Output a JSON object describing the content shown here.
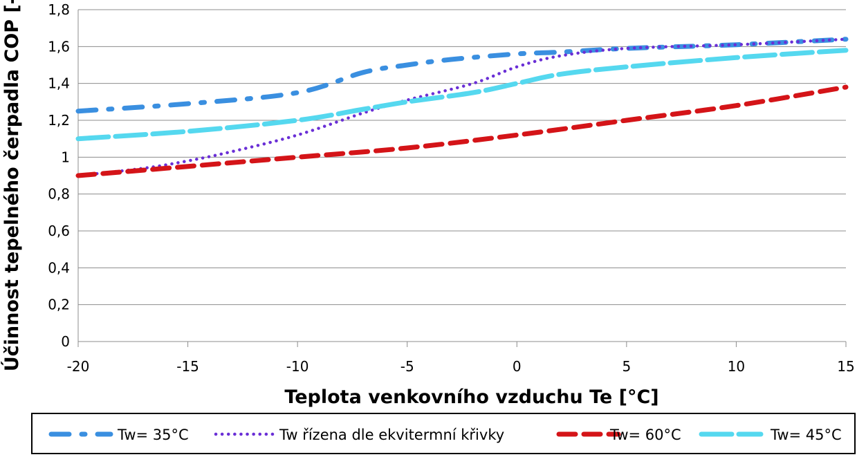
{
  "chart_data": {
    "type": "line",
    "xlabel": "Teplota venkovního vzduchu Te [°C]",
    "ylabel": "Účinnost tepelného čerpadla COP [-]",
    "xlim": [
      -20,
      15
    ],
    "ylim": [
      0,
      1.8
    ],
    "x_ticks": [
      "-20",
      "-15",
      "-10",
      "-5",
      "0",
      "5",
      "10",
      "15"
    ],
    "y_ticks": [
      "0",
      "0,2",
      "0,4",
      "0,6",
      "0,8",
      "1",
      "1,2",
      "1,4",
      "1,6",
      "1,8"
    ],
    "grid": "horizontal",
    "legend_position": "bottom",
    "series": [
      {
        "name": "Tw= 35°C",
        "color": "#3a8fe0",
        "style": "dash-dot",
        "x": [
          -20,
          -15,
          -10,
          -7,
          -5,
          -3,
          0,
          2,
          5,
          10,
          15
        ],
        "y": [
          1.25,
          1.29,
          1.35,
          1.46,
          1.5,
          1.53,
          1.56,
          1.57,
          1.59,
          1.61,
          1.64
        ]
      },
      {
        "name": "Tw řízena dle ekvitermní křivky",
        "color": "#6a2fd6",
        "style": "dotted",
        "x": [
          -20,
          -17,
          -15,
          -13,
          -10,
          -7,
          -5,
          -2,
          0,
          2,
          5,
          10,
          15
        ],
        "y": [
          0.9,
          0.94,
          0.98,
          1.03,
          1.12,
          1.24,
          1.31,
          1.4,
          1.49,
          1.55,
          1.59,
          1.61,
          1.64
        ]
      },
      {
        "name": "Tw= 60°C",
        "color": "#d41418",
        "style": "dashed",
        "x": [
          -20,
          -15,
          -10,
          -5,
          0,
          5,
          10,
          15
        ],
        "y": [
          0.9,
          0.95,
          1.0,
          1.05,
          1.12,
          1.2,
          1.28,
          1.38
        ]
      },
      {
        "name": "Tw= 45°C",
        "color": "#55d8ef",
        "style": "long-dash",
        "x": [
          -20,
          -15,
          -10,
          -7,
          -5,
          -2,
          0,
          2,
          5,
          10,
          15
        ],
        "y": [
          1.1,
          1.14,
          1.2,
          1.26,
          1.3,
          1.35,
          1.4,
          1.45,
          1.49,
          1.54,
          1.58
        ]
      }
    ]
  }
}
